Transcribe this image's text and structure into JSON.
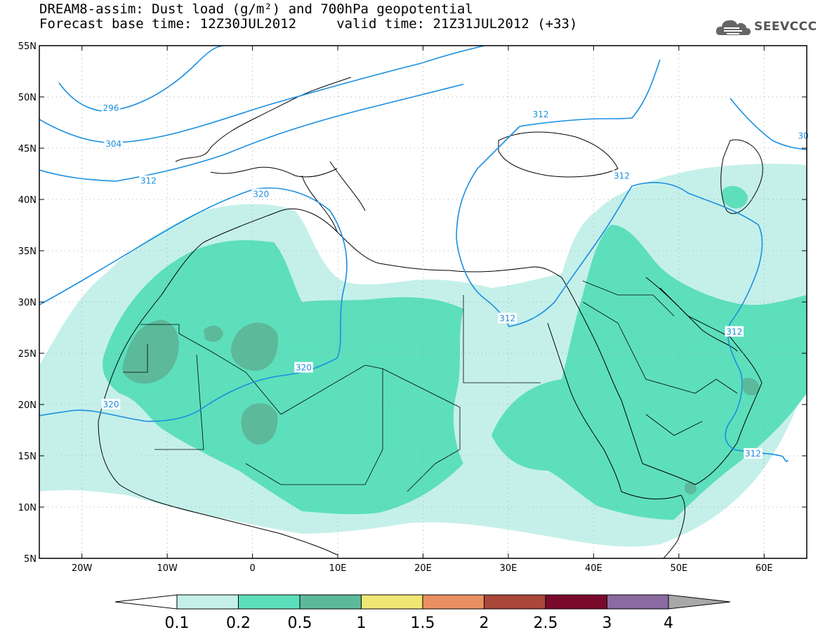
{
  "title": {
    "line1": "DREAM8-assim: Dust load (g/m²) and 700hPa geopotential",
    "line2": "Forecast base time: 12Z30JUL2012     valid time: 21Z31JUL2012 (+33)"
  },
  "logo": {
    "text": "SEEVCCC",
    "icon": "cloud-icon"
  },
  "map": {
    "lon_range": [
      -25,
      65
    ],
    "lat_range": [
      5,
      55
    ],
    "lon_ticks": [
      {
        "value": -20,
        "label": "20W"
      },
      {
        "value": -10,
        "label": "10W"
      },
      {
        "value": 0,
        "label": "0"
      },
      {
        "value": 10,
        "label": "10E"
      },
      {
        "value": 20,
        "label": "20E"
      },
      {
        "value": 30,
        "label": "30E"
      },
      {
        "value": 40,
        "label": "40E"
      },
      {
        "value": 50,
        "label": "50E"
      },
      {
        "value": 60,
        "label": "60E"
      }
    ],
    "lat_ticks": [
      {
        "value": 55,
        "label": "55N"
      },
      {
        "value": 50,
        "label": "50N"
      },
      {
        "value": 45,
        "label": "45N"
      },
      {
        "value": 40,
        "label": "40N"
      },
      {
        "value": 35,
        "label": "35N"
      },
      {
        "value": 30,
        "label": "30N"
      },
      {
        "value": 25,
        "label": "25N"
      },
      {
        "value": 20,
        "label": "20N"
      },
      {
        "value": 15,
        "label": "15N"
      },
      {
        "value": 10,
        "label": "10N"
      },
      {
        "value": 5,
        "label": "5N"
      }
    ],
    "grid_style": "dotted",
    "contour_color": "#1a8fe0",
    "contour_labels": [
      {
        "text": "296",
        "lon": -16.6,
        "lat": 48.9
      },
      {
        "text": "304",
        "lon": -16.3,
        "lat": 45.4
      },
      {
        "text": "312",
        "lon": -12.2,
        "lat": 41.8
      },
      {
        "text": "320",
        "lon": 1.0,
        "lat": 40.5
      },
      {
        "text": "320",
        "lon": 6.0,
        "lat": 23.6
      },
      {
        "text": "320",
        "lon": -16.6,
        "lat": 20.0
      },
      {
        "text": "312",
        "lon": 29.9,
        "lat": 28.4
      },
      {
        "text": "312",
        "lon": 33.8,
        "lat": 48.3
      },
      {
        "text": "312",
        "lon": 43.3,
        "lat": 42.3
      },
      {
        "text": "312",
        "lon": 56.5,
        "lat": 27.1
      },
      {
        "text": "312",
        "lon": 58.7,
        "lat": 15.2
      },
      {
        "text": "30",
        "lon": 64.6,
        "lat": 46.2
      }
    ]
  },
  "colorbar": {
    "colors": [
      "#c5f0ea",
      "#5ddfbc",
      "#5cb99a",
      "#f0e674",
      "#e8905f",
      "#a9483a",
      "#7a0a2b",
      "#8a6aa0",
      "#a8a8a8"
    ],
    "labels": [
      "0.1",
      "0.2",
      "0.5",
      "1",
      "1.5",
      "2",
      "2.5",
      "3",
      "4"
    ]
  },
  "dust_colors": {
    "light": "#c5f0ea",
    "medium": "#5ddfbc",
    "dark": "#5cb99a"
  }
}
